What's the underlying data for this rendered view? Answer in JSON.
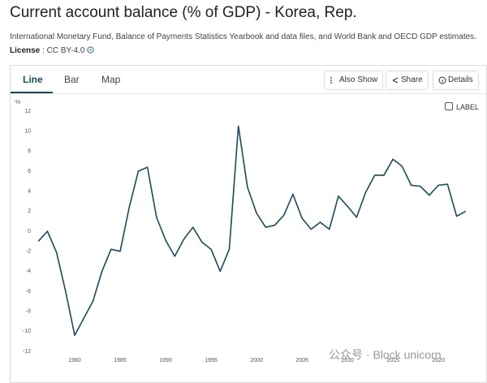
{
  "header": {
    "title": "Current account balance (% of GDP) - Korea, Rep.",
    "source": "International Monetary Fund, Balance of Payments Statistics Yearbook and data files, and World Bank and OECD GDP estimates.",
    "license_label": "License",
    "license_value": "CC BY-4.0"
  },
  "tabs": [
    "Line",
    "Bar",
    "Map"
  ],
  "buttons": [
    "Also Show",
    "Share",
    "Details"
  ],
  "checkbox_label": "LABEL",
  "watermark": "公众号 · Block unicorn",
  "chart_data": {
    "type": "line",
    "y_label": "%",
    "x": [
      1976,
      1977,
      1978,
      1979,
      1980,
      1981,
      1982,
      1983,
      1984,
      1985,
      1986,
      1987,
      1988,
      1989,
      1990,
      1991,
      1992,
      1993,
      1994,
      1995,
      1996,
      1997,
      1998,
      1999,
      2000,
      2001,
      2002,
      2003,
      2004,
      2005,
      2006,
      2007,
      2008,
      2009,
      2010,
      2011,
      2012,
      2013,
      2014,
      2015,
      2016,
      2017,
      2018,
      2019,
      2020,
      2021,
      2022,
      2023
    ],
    "series": [
      {
        "name": "Korea, Rep.",
        "color": "#1b4a5c",
        "values": [
          -1.0,
          0.0,
          -2.1,
          -6.0,
          -10.4,
          -8.7,
          -7.0,
          -4.0,
          -1.8,
          -2.0,
          2.4,
          6.0,
          6.4,
          1.4,
          -0.9,
          -2.5,
          -0.8,
          0.4,
          -1.1,
          -1.8,
          -4.0,
          -1.8,
          10.5,
          4.4,
          1.8,
          0.4,
          0.6,
          1.6,
          3.7,
          1.3,
          0.2,
          0.9,
          0.2,
          3.5,
          2.5,
          1.4,
          3.9,
          5.6,
          5.6,
          7.2,
          6.5,
          4.6,
          4.5,
          3.6,
          4.6,
          4.7,
          1.5,
          2.0
        ]
      }
    ],
    "xlim": [
      1975,
      2024
    ],
    "xticks": [
      1980,
      1985,
      1990,
      1995,
      2000,
      2005,
      2010,
      2015,
      2020
    ],
    "ylim": [
      -12,
      12
    ],
    "yticks": [
      -12,
      -10,
      -8,
      -6,
      -4,
      -2,
      0,
      2,
      4,
      6,
      8,
      10,
      12
    ],
    "grid": false
  }
}
